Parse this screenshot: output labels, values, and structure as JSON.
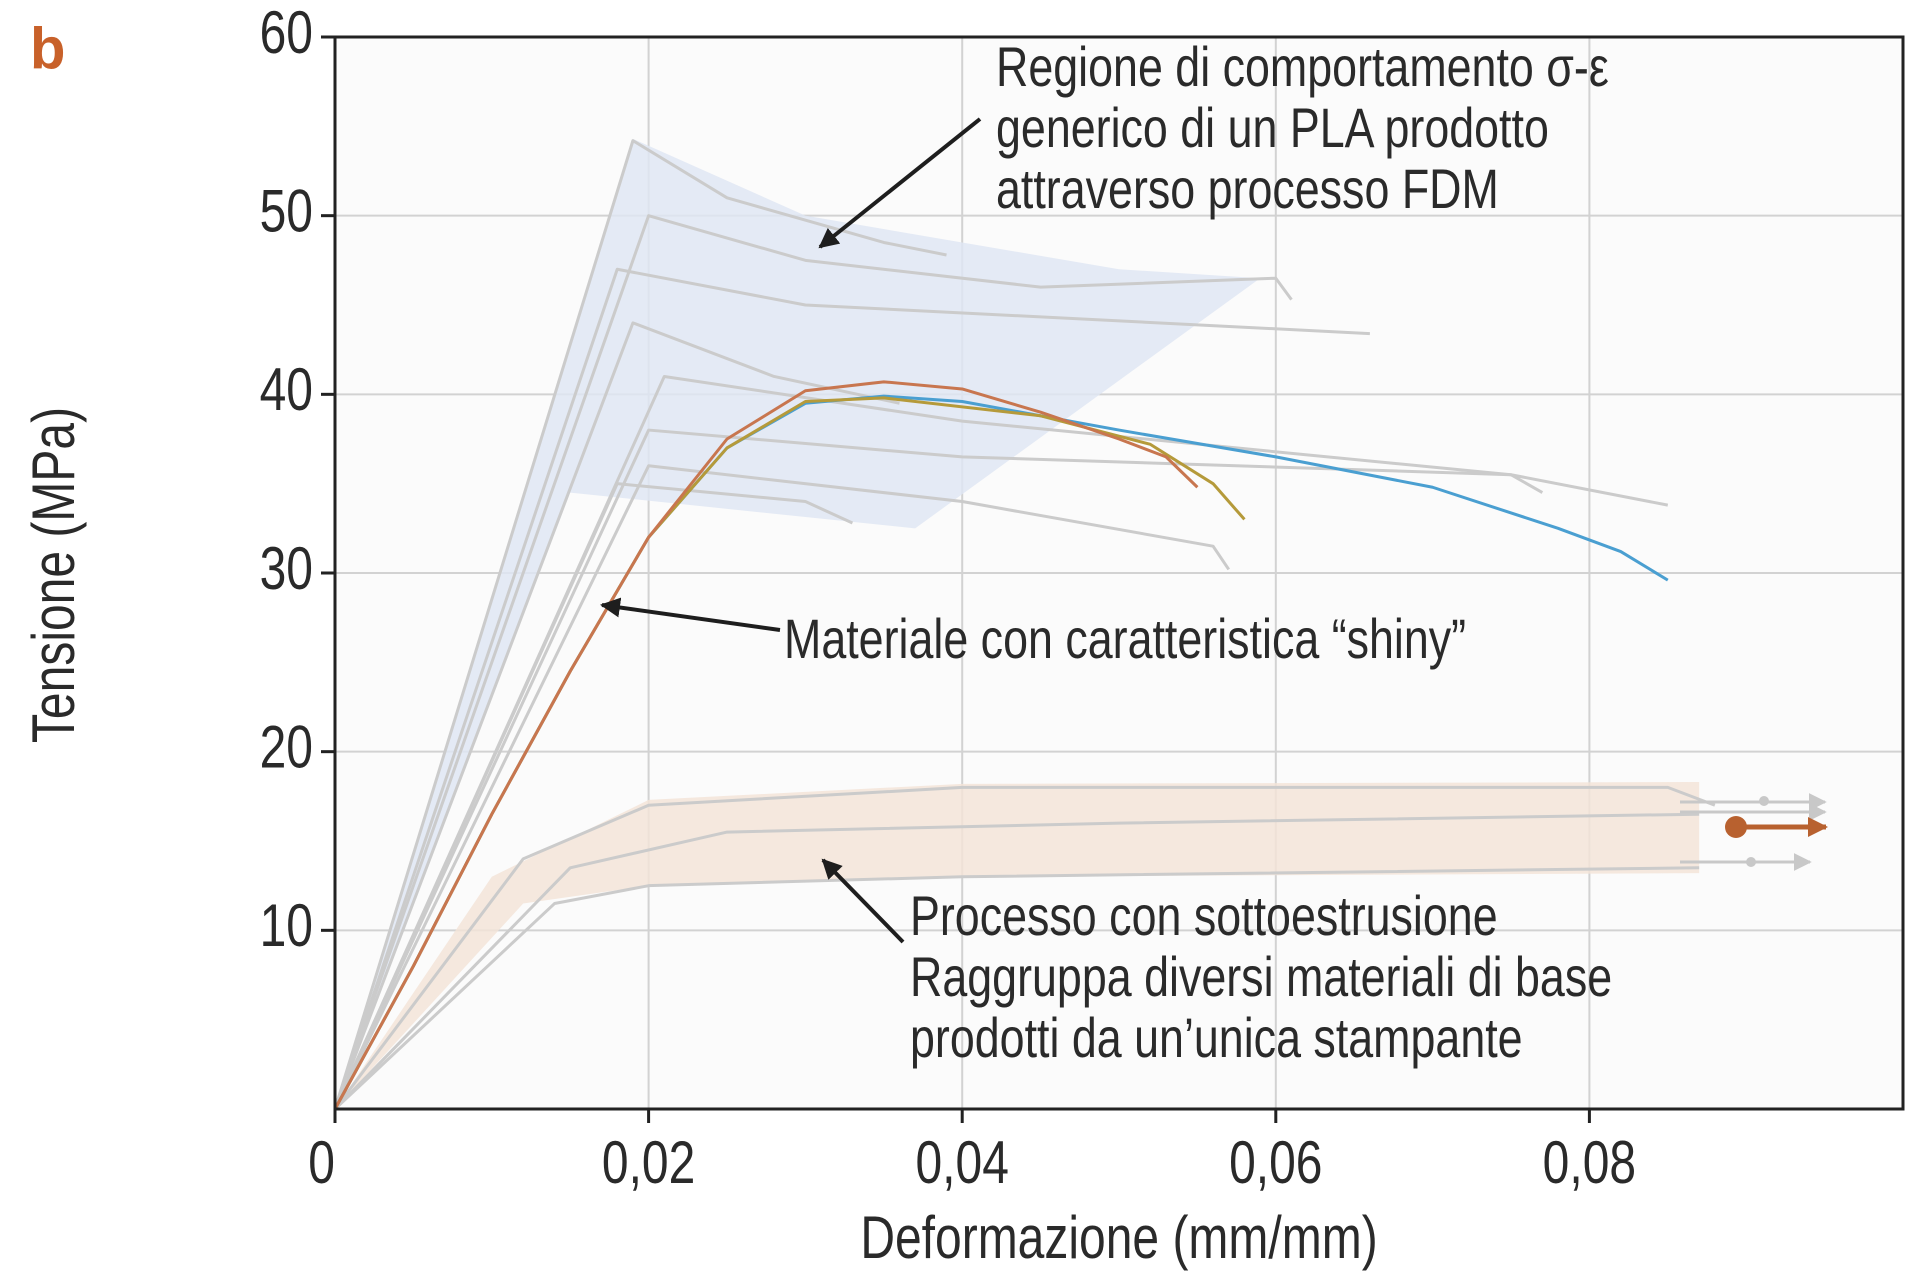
{
  "chart_data": {
    "type": "line",
    "panel_label": "b",
    "xlabel": "Deformazione (mm/mm)",
    "ylabel": "Tensione (MPa)",
    "xlim": [
      0,
      0.1
    ],
    "ylim": [
      0,
      60
    ],
    "xticks": [
      0,
      {
        "value": 0.02,
        "label": "0,02"
      },
      {
        "value": 0.04,
        "label": "0,04"
      },
      {
        "value": 0.06,
        "label": "0,06"
      },
      {
        "value": 0.08,
        "label": "0,08"
      }
    ],
    "yticks": [
      10,
      20,
      30,
      40,
      50,
      60
    ],
    "grid": true,
    "bands": [
      {
        "color": "#dfe6f3",
        "x": [
          0,
          0.019,
          0.03,
          0.05,
          0.059,
          0.037,
          0.015,
          0
        ],
        "y": [
          0,
          54.3,
          50,
          47,
          46.5,
          32.5,
          34.5,
          0
        ]
      },
      {
        "color": "#f3e4d8",
        "x": [
          0,
          0.01,
          0.02,
          0.04,
          0.087,
          0.087,
          0.04,
          0.02,
          0.012,
          0
        ],
        "y": [
          0,
          13,
          17.3,
          18.2,
          18.3,
          13.2,
          13,
          12.5,
          11.5,
          0
        ]
      }
    ],
    "series": [
      {
        "color": "#cbcbcb",
        "x": [
          0,
          0.019,
          0.025,
          0.035,
          0.039
        ],
        "values": [
          0,
          54.2,
          51,
          48.5,
          47.8
        ]
      },
      {
        "color": "#cbcbcb",
        "x": [
          0,
          0.02,
          0.03,
          0.045,
          0.06,
          0.061
        ],
        "values": [
          0,
          50,
          47.5,
          46,
          46.5,
          45.3
        ]
      },
      {
        "color": "#cbcbcb",
        "x": [
          0,
          0.018,
          0.03,
          0.066
        ],
        "values": [
          0,
          47,
          45,
          43.4
        ]
      },
      {
        "color": "#cbcbcb",
        "x": [
          0,
          0.019,
          0.028,
          0.036
        ],
        "values": [
          0,
          44,
          41,
          39.5
        ]
      },
      {
        "color": "#cbcbcb",
        "x": [
          0,
          0.021,
          0.04,
          0.075,
          0.077
        ],
        "values": [
          0,
          41,
          38.5,
          35.5,
          34.5
        ]
      },
      {
        "color": "#cbcbcb",
        "x": [
          0,
          0.02,
          0.04,
          0.075,
          0.085
        ],
        "values": [
          0,
          38,
          36.5,
          35.5,
          33.8
        ]
      },
      {
        "color": "#cbcbcb",
        "x": [
          0,
          0.018,
          0.03,
          0.033
        ],
        "values": [
          0,
          35,
          34,
          32.8
        ]
      },
      {
        "color": "#cbcbcb",
        "x": [
          0,
          0.02,
          0.04,
          0.056,
          0.057
        ],
        "values": [
          0,
          36,
          34,
          31.5,
          30.2
        ]
      },
      {
        "color": "#cbcbcb",
        "x": [
          0,
          0.012,
          0.02,
          0.04,
          0.085,
          0.088
        ],
        "values": [
          0,
          14,
          17,
          18,
          18,
          17
        ]
      },
      {
        "color": "#cbcbcb",
        "x": [
          0,
          0.015,
          0.025,
          0.05,
          0.087
        ],
        "values": [
          0,
          13.5,
          15.5,
          16,
          16.5
        ]
      },
      {
        "color": "#cbcbcb",
        "x": [
          0,
          0.014,
          0.02,
          0.04,
          0.087
        ],
        "values": [
          0,
          11.5,
          12.5,
          13,
          13.5
        ]
      },
      {
        "color": "#4a9fd1",
        "x": [
          0,
          0.005,
          0.01,
          0.015,
          0.02,
          0.025,
          0.03,
          0.035,
          0.04,
          0.05,
          0.06,
          0.07,
          0.078,
          0.082,
          0.085
        ],
        "values": [
          0,
          8,
          16.5,
          24.5,
          32,
          37,
          39.5,
          39.9,
          39.6,
          38,
          36.5,
          34.8,
          32.5,
          31.2,
          29.6
        ]
      },
      {
        "color": "#b59a3a",
        "x": [
          0,
          0.005,
          0.01,
          0.015,
          0.02,
          0.025,
          0.03,
          0.035,
          0.045,
          0.052,
          0.056,
          0.058
        ],
        "values": [
          0,
          8,
          16.5,
          24.5,
          32,
          37,
          39.6,
          39.8,
          38.8,
          37.2,
          35,
          33
        ]
      },
      {
        "color": "#c8764f",
        "x": [
          0,
          0.005,
          0.01,
          0.015,
          0.02,
          0.025,
          0.03,
          0.035,
          0.04,
          0.045,
          0.05,
          0.053,
          0.055
        ],
        "values": [
          0,
          8,
          16.5,
          24.5,
          32,
          37.5,
          40.2,
          40.7,
          40.3,
          39,
          37.5,
          36.5,
          34.8
        ]
      }
    ],
    "annotations": [
      {
        "lines": [
          "Regione di comportamento σ-ε",
          "generico di un PLA prodotto",
          "attraverso processo FDM"
        ]
      },
      {
        "lines": [
          "Materiale con caratteristica “shiny”"
        ]
      },
      {
        "lines": [
          "Processo con sottoestrusione",
          "Raggruppa diversi materiali di base",
          "prodotti da un’unica stampante"
        ]
      }
    ]
  }
}
